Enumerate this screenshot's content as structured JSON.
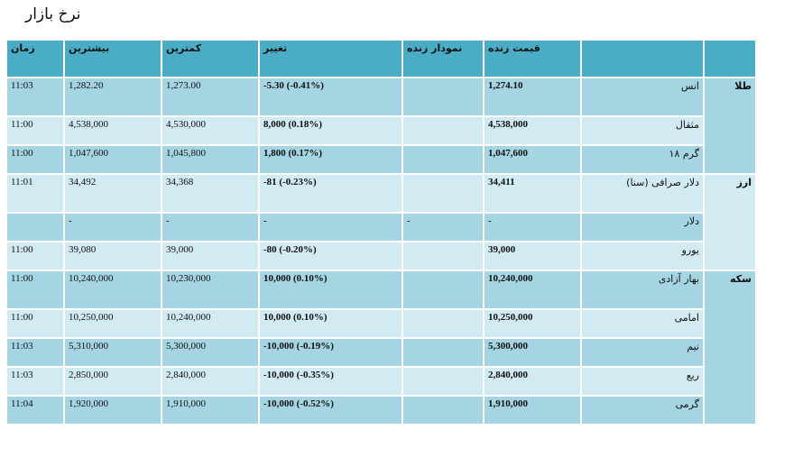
{
  "title": "نرخ بازار",
  "columns": {
    "category": "",
    "name": "",
    "live_price": "قیمت زنده",
    "live_chart": "نمودار زنده",
    "change": "تغییر",
    "low": "کمترین",
    "high": "بیشترین",
    "time": "زمان"
  },
  "groups": [
    {
      "label": "طلا",
      "rows": [
        {
          "name": "انس",
          "live": "1,274.10",
          "chart": "",
          "change": "-5.30 (-0.41%)",
          "low": "1,273.00",
          "high": "1,282.20",
          "time": "11:03"
        },
        {
          "name": "مثقال",
          "live": "4,538,000",
          "chart": "",
          "change": "8,000 (0.18%)",
          "low": "4,530,000",
          "high": "4,538,000",
          "time": "11:00"
        },
        {
          "name": "گرم ۱۸",
          "live": "1,047,600",
          "chart": "",
          "change": "1,800 (0.17%)",
          "low": "1,045,800",
          "high": "1,047,600",
          "time": "11:00"
        }
      ]
    },
    {
      "label": "ارز",
      "rows": [
        {
          "name": "دلار صرافی (سنا)",
          "live": "34,411",
          "chart": "",
          "change": "-81 (-0.23%)",
          "low": "34,368",
          "high": "34,492",
          "time": "11:01"
        },
        {
          "name": "دلار",
          "live": "-",
          "chart": "-",
          "change": "-",
          "low": "-",
          "high": "-",
          "time": ""
        },
        {
          "name": "یورو",
          "live": "39,000",
          "chart": "",
          "change": "-80 (-0.20%)",
          "low": "39,000",
          "high": "39,080",
          "time": "11:00"
        }
      ]
    },
    {
      "label": "سکه",
      "rows": [
        {
          "name": "بهار آزادی",
          "live": "10,240,000",
          "chart": "",
          "change": "10,000 (0.10%)",
          "low": "10,230,000",
          "high": "10,240,000",
          "time": "11:00"
        },
        {
          "name": "امامی",
          "live": "10,250,000",
          "chart": "",
          "change": "10,000 (0.10%)",
          "low": "10,240,000",
          "high": "10,250,000",
          "time": "11:00"
        },
        {
          "name": "نیم",
          "live": "5,300,000",
          "chart": "",
          "change": "-10,000 (-0.19%)",
          "low": "5,300,000",
          "high": "5,310,000",
          "time": "11:03"
        },
        {
          "name": "ربع",
          "live": "2,840,000",
          "chart": "",
          "change": "-10,000 (-0.35%)",
          "low": "2,840,000",
          "high": "2,850,000",
          "time": "11:03"
        },
        {
          "name": "گرمی",
          "live": "1,910,000",
          "chart": "",
          "change": "-10,000 (-0.52%)",
          "low": "1,910,000",
          "high": "1,920,000",
          "time": "11:04"
        }
      ]
    }
  ]
}
